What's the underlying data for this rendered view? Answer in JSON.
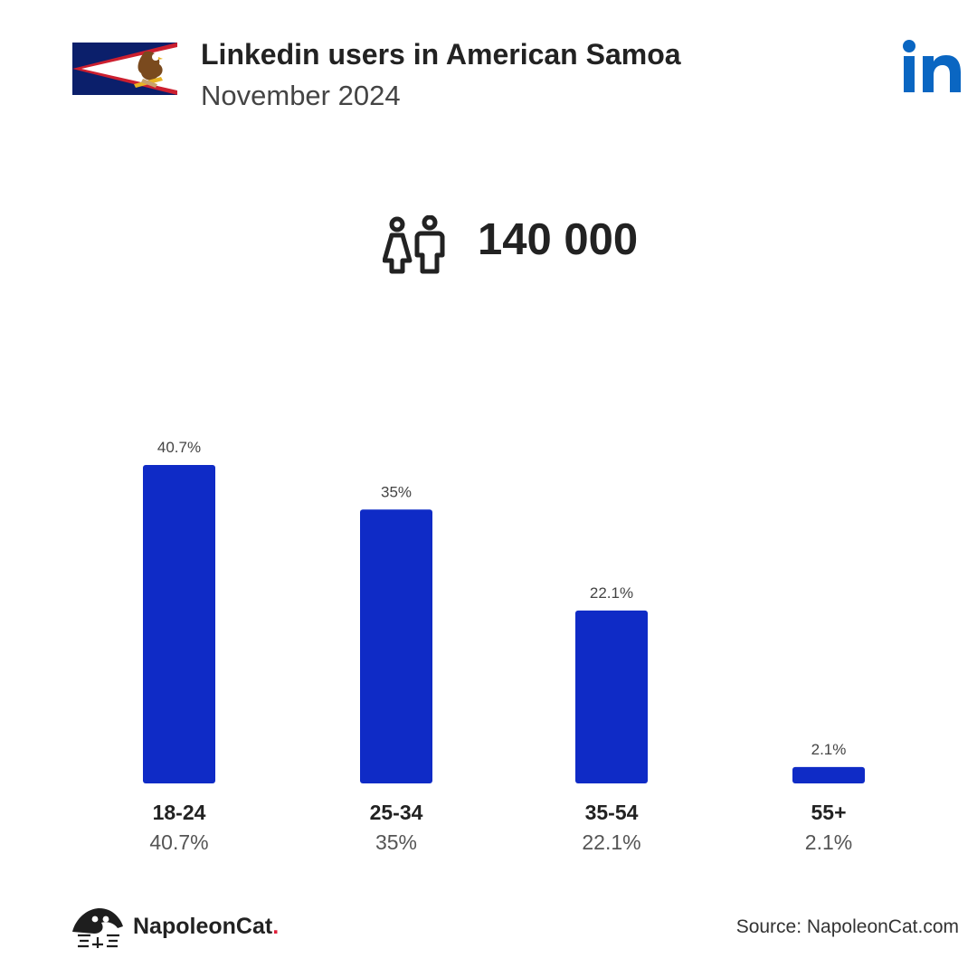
{
  "header": {
    "title": "Linkedin users in American Samoa",
    "subtitle": "November 2024",
    "flag_icon": "american-samoa-flag-icon",
    "logo_icon": "linkedin-logo-icon",
    "logo_color": "#0a66c2"
  },
  "total": {
    "value": "140 000",
    "icon": "users-icon"
  },
  "chart_data": {
    "type": "bar",
    "categories": [
      "18-24",
      "25-34",
      "35-54",
      "55+"
    ],
    "values": [
      40.7,
      35,
      22.1,
      2.1
    ],
    "value_labels": [
      "40.7%",
      "35%",
      "22.1%",
      "2.1%"
    ],
    "ylim": [
      0,
      40.7
    ],
    "grid": false,
    "bar_color": "#0f2bc6"
  },
  "footer": {
    "brand_name": "NapoleonCat",
    "brand_dot": ".",
    "source": "Source: NapoleonCat.com",
    "brand_icon": "napoleoncat-logo-icon"
  }
}
